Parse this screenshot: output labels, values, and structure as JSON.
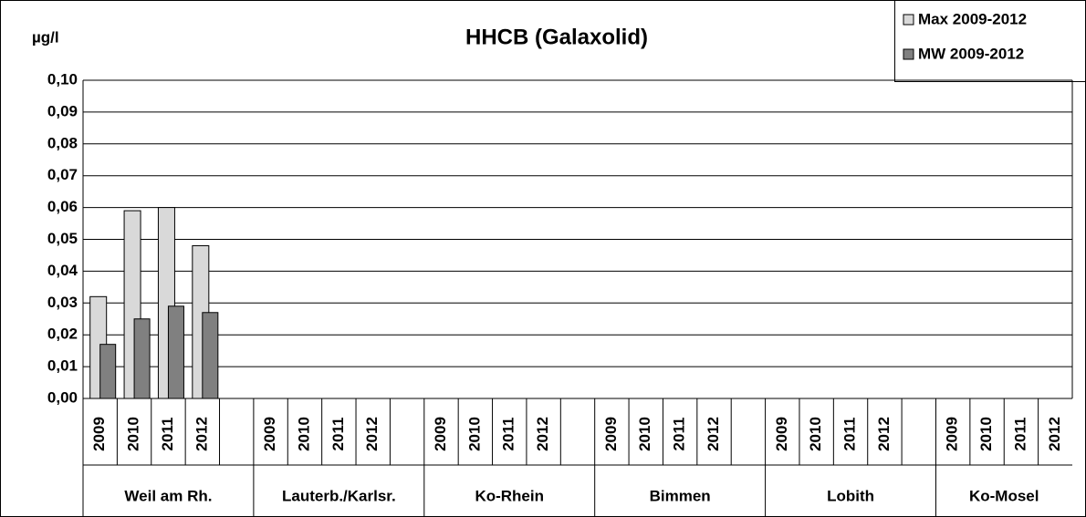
{
  "chart_data": {
    "type": "bar",
    "title": "HHCB (Galaxolid)",
    "y_label": "µg/l",
    "categories": [
      "2009",
      "2010",
      "2011",
      "2012",
      null,
      "2009",
      "2010",
      "2011",
      "2012",
      null,
      "2009",
      "2010",
      "2011",
      "2012",
      null,
      "2009",
      "2010",
      "2011",
      "2012",
      null,
      "2009",
      "2010",
      "2011",
      "2012",
      null,
      "2009",
      "2010",
      "2011",
      "2012"
    ],
    "groups": [
      "Weil am Rh.",
      "Lauterb./Karlsr.",
      "Ko-Rhein",
      "Bimmen",
      "Lobith",
      "Ko-Mosel"
    ],
    "series": [
      {
        "name": "Max 2009-2012",
        "color": "#d9d9d9",
        "values": [
          0.032,
          0.059,
          0.06,
          0.048,
          null,
          null,
          null,
          null,
          null,
          null,
          null,
          null,
          null,
          null,
          null,
          null,
          null,
          null,
          null,
          null,
          null,
          null,
          null,
          null,
          null,
          null,
          null,
          null,
          null
        ]
      },
      {
        "name": "MW 2009-2012",
        "color": "#808080",
        "values": [
          0.017,
          0.025,
          0.029,
          0.027,
          null,
          null,
          null,
          null,
          null,
          null,
          null,
          null,
          null,
          null,
          null,
          null,
          null,
          null,
          null,
          null,
          null,
          null,
          null,
          null,
          null,
          null,
          null,
          null,
          null
        ]
      }
    ],
    "ylim": [
      0,
      0.1
    ],
    "yticks": [
      {
        "value": 0,
        "label": "0,00"
      },
      {
        "value": 0.01,
        "label": "0,01"
      },
      {
        "value": 0.02,
        "label": "0,02"
      },
      {
        "value": 0.03,
        "label": "0,03"
      },
      {
        "value": 0.04,
        "label": "0,04"
      },
      {
        "value": 0.05,
        "label": "0,05"
      },
      {
        "value": 0.06,
        "label": "0,06"
      },
      {
        "value": 0.07,
        "label": "0,07"
      },
      {
        "value": 0.08,
        "label": "0,08"
      },
      {
        "value": 0.09,
        "label": "0,09"
      },
      {
        "value": 0.1,
        "label": "0,10"
      }
    ],
    "grid": true,
    "legend": "top-right"
  }
}
